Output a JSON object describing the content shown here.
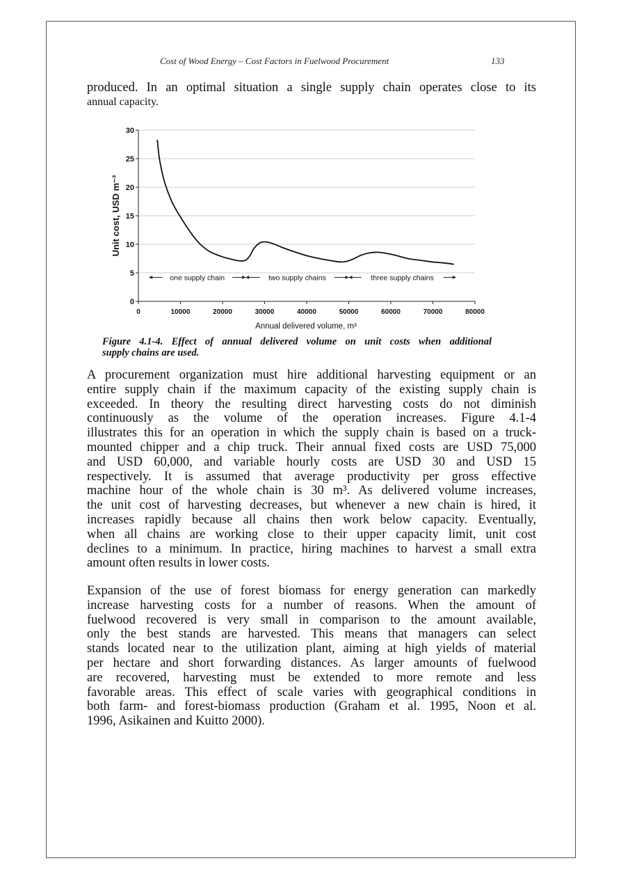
{
  "header": {
    "running_title": "Cost of Wood Energy – Cost Factors in Fuelwood Procurement",
    "page_number": "133"
  },
  "intro_lines": [
    "produced. In an optimal situation a single supply chain operates close to its",
    "annual capacity."
  ],
  "chart_data": {
    "type": "line",
    "title": "",
    "xlabel": "Annual delivered volume, m³",
    "ylabel": "Unit cost, USD m⁻³",
    "xlim": [
      0,
      80000
    ],
    "ylim": [
      0,
      30
    ],
    "x_ticks": [
      "0",
      "10000",
      "20000",
      "30000",
      "40000",
      "50000",
      "60000",
      "70000",
      "80000"
    ],
    "y_ticks": [
      "0",
      "5",
      "10",
      "15",
      "20",
      "25",
      "30"
    ],
    "grid": "horizontal",
    "x": [
      4500,
      5000,
      6000,
      7000,
      8000,
      9000,
      10500,
      12000,
      13500,
      15000,
      17000,
      20000,
      22000,
      24000,
      25500,
      26500,
      27500,
      29000,
      30500,
      32000,
      34000,
      37000,
      40000,
      43000,
      46000,
      48000,
      49500,
      51000,
      53000,
      55000,
      57000,
      59000,
      61000,
      64000,
      67000,
      70000,
      73000,
      75000
    ],
    "y": [
      28.3,
      25,
      21.5,
      19.2,
      17.4,
      16,
      14.2,
      12.5,
      11,
      9.8,
      8.7,
      7.8,
      7.4,
      7.1,
      7.2,
      8,
      9.3,
      10.3,
      10.4,
      10.1,
      9.5,
      8.7,
      8,
      7.5,
      7.1,
      6.9,
      7,
      7.4,
      8.1,
      8.5,
      8.6,
      8.4,
      8.1,
      7.5,
      7.2,
      6.9,
      6.7,
      6.5
    ],
    "line_color": "#111111",
    "annotations": [
      {
        "text": "one supply chain",
        "from": 2500,
        "to": 25500,
        "y": 4.2
      },
      {
        "text": "two supply chains",
        "from": 25500,
        "to": 50000,
        "y": 4.2
      },
      {
        "text": "three supply chains",
        "from": 50000,
        "to": 75500,
        "y": 4.2
      }
    ]
  },
  "caption_lines": [
    "Figure 4.1-4. Effect of annual delivered volume on unit costs when additional",
    "supply chains are used."
  ],
  "paragraph1_lines": [
    "A procurement organization must hire additional harvesting equipment or an",
    "entire supply chain if the maximum capacity of the existing supply chain is",
    "exceeded. In theory the resulting direct harvesting costs do not diminish",
    "continuously as the volume of the operation increases. Figure 4.1-4",
    "illustrates this for an operation in which the supply chain is based on a truck-",
    "mounted chipper and a chip truck. Their annual fixed costs are USD 75,000",
    "and USD 60,000, and variable hourly costs are USD 30 and USD 15",
    "respectively. It is assumed that average productivity per gross effective",
    "machine hour of the whole chain is 30 m³. As delivered volume increases,",
    "the unit cost of harvesting decreases, but whenever a new chain is hired, it",
    "increases rapidly because all chains then work below capacity. Eventually,",
    "when all chains are working close to their upper capacity limit, unit cost",
    "declines to a minimum. In practice, hiring machines to harvest a small extra",
    "amount often results in lower costs."
  ],
  "paragraph2_lines": [
    "Expansion of the use of forest biomass for energy generation can markedly",
    "increase harvesting costs for a number of reasons. When the amount of",
    "fuelwood recovered is very small in comparison to the amount available,",
    "only the best stands are harvested. This means that managers can select",
    "stands located near to the utilization plant, aiming at high yields of material",
    "per hectare and short forwarding distances. As larger amounts of fuelwood",
    "are recovered, harvesting must be extended to more remote and less",
    "favorable areas. This effect of scale varies with geographical conditions in",
    "both farm- and forest-biomass production (Graham et al. 1995, Noon et al.",
    "1996, Asikainen and Kuitto 2000)."
  ]
}
